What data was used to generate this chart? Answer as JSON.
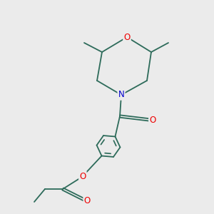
{
  "bg_color": "#ebebeb",
  "bond_color": "#2d6b5a",
  "atom_colors": {
    "O": "#ee0000",
    "N": "#0000cc"
  },
  "font_size": 8.5,
  "figsize": [
    3.0,
    3.0
  ],
  "dpi": 100
}
